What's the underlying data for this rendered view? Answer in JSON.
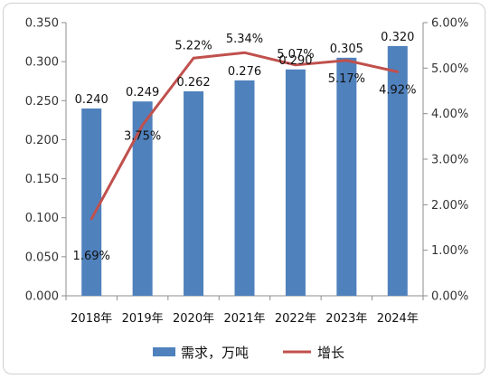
{
  "chart_data": {
    "type": "bar",
    "categories": [
      "2018年",
      "2019年",
      "2020年",
      "2021年",
      "2022年",
      "2023年",
      "2024年"
    ],
    "series": [
      {
        "name": "需求，万吨",
        "type": "bar",
        "axis": "left",
        "values": [
          0.24,
          0.249,
          0.262,
          0.276,
          0.29,
          0.305,
          0.32
        ],
        "labels": [
          "0.240",
          "0.249",
          "0.262",
          "0.276",
          "0.290",
          "0.305",
          "0.320"
        ],
        "color": "#4f81bd"
      },
      {
        "name": "增长",
        "type": "line",
        "axis": "right",
        "values": [
          1.69,
          3.75,
          5.22,
          5.34,
          5.07,
          5.17,
          4.92
        ],
        "labels": [
          "1.69%",
          "3.75%",
          "5.22%",
          "5.34%",
          "5.07%",
          "5.17%",
          "4.92%"
        ],
        "color": "#c0504d"
      }
    ],
    "y_left": {
      "ylim": [
        0,
        0.35
      ],
      "ticks": [
        "0.000",
        "0.050",
        "0.100",
        "0.150",
        "0.200",
        "0.250",
        "0.300",
        "0.350"
      ]
    },
    "y_right": {
      "ylim": [
        0,
        6
      ],
      "ticks": [
        "0.00%",
        "1.00%",
        "2.00%",
        "3.00%",
        "4.00%",
        "5.00%",
        "6.00%"
      ]
    },
    "grid": false,
    "legend": "bottom"
  }
}
